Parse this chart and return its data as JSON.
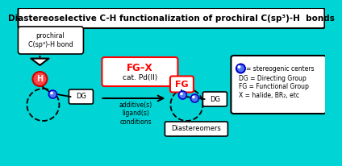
{
  "bg_color": "#00D4D4",
  "title": "Diastereoselective C-H functionalization of prochiral C(sp³)-H  bonds",
  "title_fontsize": 7.5,
  "prochiral_label": "prochiral\nC(sp³)-H bond",
  "reagent_label1": "FG–X",
  "reagent_label2": "cat. Pd(II)",
  "additive_label": "additive(s)\nligand(s)\nconditions",
  "diastereomers_label": "Diastereomers",
  "fg_label": "FG",
  "dg_left_label": "DG",
  "dg_right_label": "DG",
  "h_label": "H",
  "circle_fill": "#5577ee",
  "circle_edge": "#0000cc",
  "circle_highlight": "#aabbff",
  "red_fill": "#ff4444",
  "red_edge": "#cc0000"
}
